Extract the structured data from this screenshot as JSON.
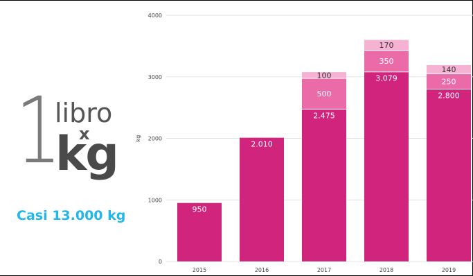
{
  "logo": {
    "number": "1",
    "word": "libro",
    "times": "x",
    "unit": "kg"
  },
  "caption": "Casi 13.000 kg",
  "chart_data": {
    "type": "bar",
    "stacked": true,
    "categories": [
      "2015",
      "2016",
      "2017",
      "2018",
      "2019"
    ],
    "series": [
      {
        "values": [
          950,
          2010,
          2475,
          3079,
          2800
        ],
        "labels": [
          "950",
          "2.010",
          "2.475",
          "3.079",
          "2.800"
        ],
        "color": "#d1257d",
        "label_color": "#ffffff"
      },
      {
        "values": [
          0,
          0,
          500,
          350,
          250
        ],
        "labels": [
          "",
          "",
          "500",
          "350",
          "250"
        ],
        "color": "#eb6aa8",
        "label_color": "#ffffff"
      },
      {
        "values": [
          0,
          0,
          100,
          170,
          140
        ],
        "labels": [
          "",
          "",
          "100",
          "170",
          "140"
        ],
        "color": "#f6b2d3",
        "label_color": "#333333"
      }
    ],
    "ylabel": "kg",
    "xlabel": "",
    "ylim": [
      0,
      4000
    ],
    "yticks": [
      0,
      1000,
      2000,
      3000,
      4000
    ],
    "grid": true,
    "title": ""
  }
}
